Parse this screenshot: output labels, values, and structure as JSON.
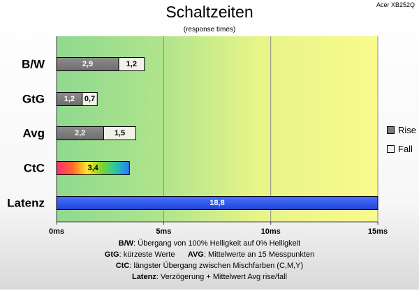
{
  "header": {
    "title": "Schaltzeiten",
    "subtitle": "(response times)",
    "brand": "Acer XB252Q"
  },
  "chart_data": {
    "type": "bar",
    "orientation": "horizontal",
    "stacked": true,
    "categories": [
      "B/W",
      "GtG",
      "Avg",
      "CtC",
      "Latenz"
    ],
    "series": [
      {
        "name": "Rise",
        "color": "#808080",
        "values": [
          2.9,
          1.2,
          2.2,
          null,
          null
        ]
      },
      {
        "name": "Fall",
        "color": "#f0f0e8",
        "values": [
          1.2,
          0.7,
          1.5,
          null,
          null
        ]
      }
    ],
    "ctc": {
      "value": 3.4,
      "label": "3,4"
    },
    "latenz": {
      "value": 18.8,
      "label": "18,8",
      "color": "#2a56ee"
    },
    "value_labels": {
      "rise": [
        "2,9",
        "1,2",
        "2,2"
      ],
      "fall": [
        "1,2",
        "0,7",
        "1,5"
      ]
    },
    "xaxis": {
      "ticks": [
        0,
        5,
        10,
        15
      ],
      "tick_labels": [
        "0ms",
        "5ms",
        "10ms",
        "15ms"
      ],
      "xlim": [
        0,
        15
      ]
    },
    "grid": true,
    "legend_position": "right",
    "background_gradient": [
      "#8fd98f",
      "#d4ee8a",
      "#f9f98a"
    ]
  },
  "footnotes": [
    {
      "key": "B/W",
      "text": ":  Übergang von 100% Helligkeit auf 0% Helligkeit"
    },
    {
      "key": "GtG",
      "text": ": kürzeste  Werte",
      "key2": "AVG",
      "text2": ": Mittelwerte  an 15 Messpunkten"
    },
    {
      "key": "CtC",
      "text": ": längster Übergang  zwischen Mischfarben  (C,M,Y)"
    },
    {
      "key": "Latenz",
      "text": ": Verzögerung  + Mittelwert  Avg rise/fall"
    }
  ]
}
